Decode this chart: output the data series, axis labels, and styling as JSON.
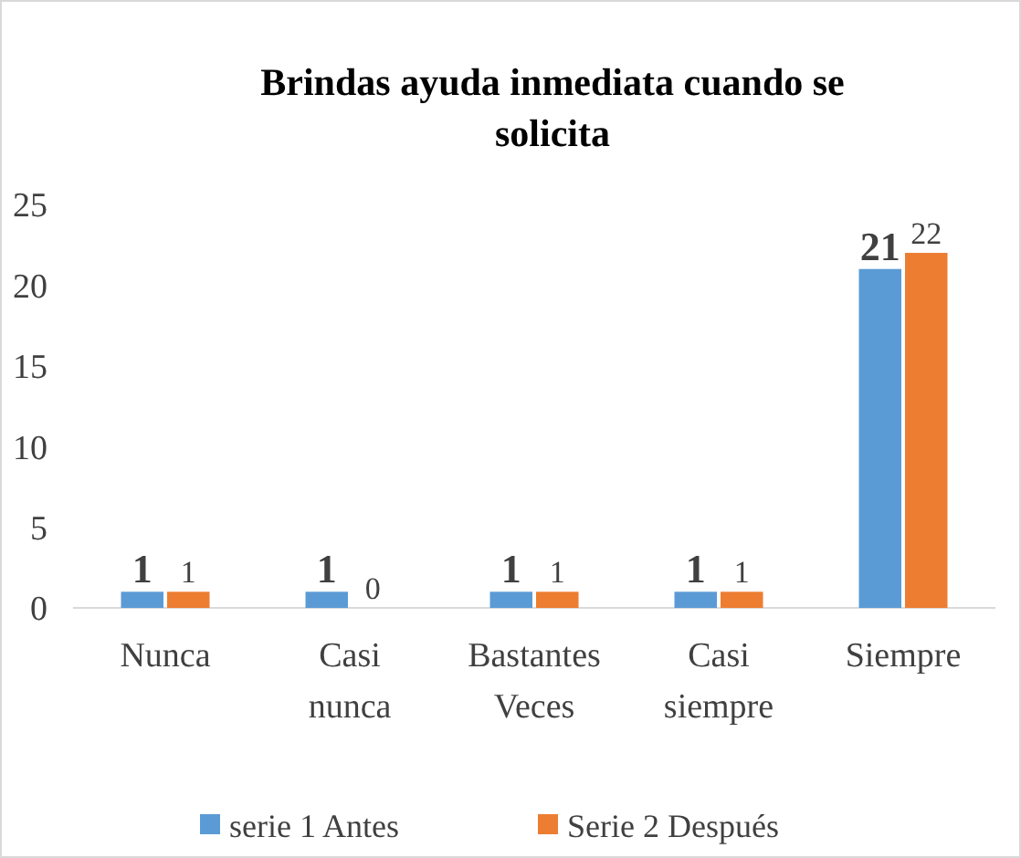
{
  "chart_data": {
    "type": "bar",
    "title": "Brindas ayuda inmediata cuando se solicita",
    "categories": [
      "Nunca",
      "Casi nunca",
      "Bastantes Veces",
      "Casi siempre",
      "Siempre"
    ],
    "series": [
      {
        "name": "serie 1 Antes",
        "color": "#5b9bd5",
        "values": [
          1,
          1,
          1,
          1,
          21
        ]
      },
      {
        "name": "Serie 2 Después",
        "color": "#ed7d31",
        "values": [
          1,
          0,
          1,
          1,
          22
        ]
      }
    ],
    "ylim": [
      0,
      25
    ],
    "yticks": [
      0,
      5,
      10,
      15,
      20,
      25
    ],
    "data_labels": true,
    "legend": "bottom"
  }
}
